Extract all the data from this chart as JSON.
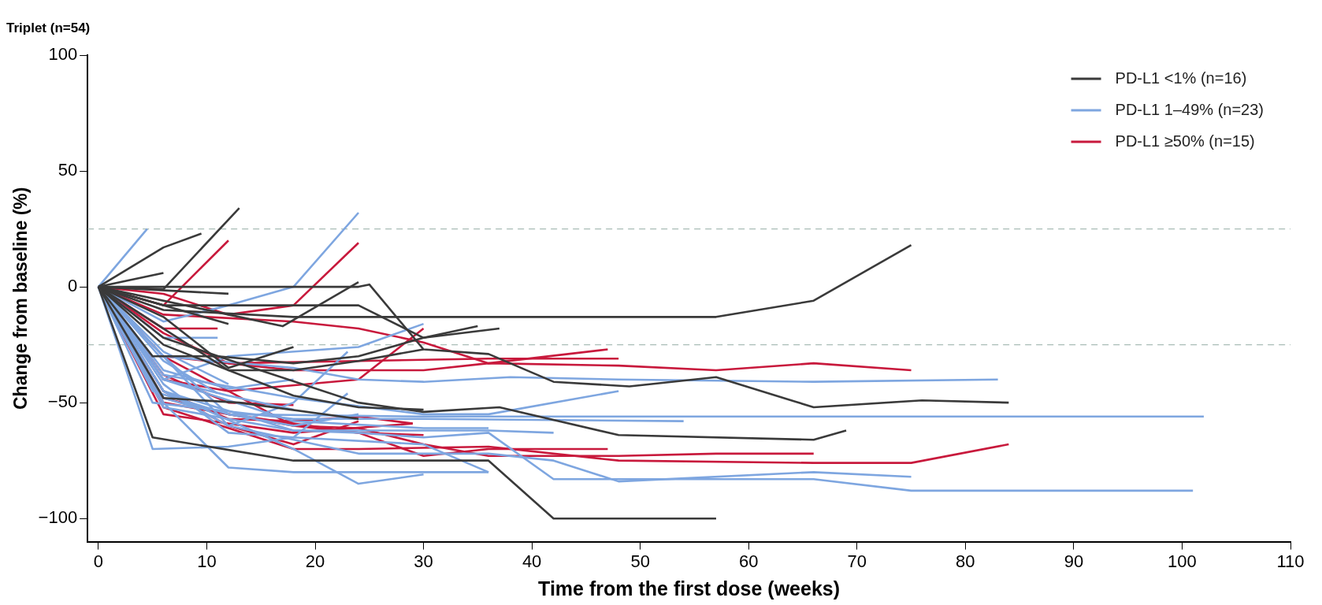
{
  "chart_data": {
    "type": "line",
    "title": "Triplet (n=54)",
    "xlabel": "Time from the first dose (weeks)",
    "ylabel": "Change from baseline (%)",
    "xlim": [
      -1,
      110
    ],
    "ylim": [
      -110,
      100
    ],
    "xticks": [
      0,
      10,
      20,
      30,
      40,
      50,
      60,
      70,
      80,
      90,
      100,
      110
    ],
    "yticks": [
      -100,
      -50,
      0,
      50,
      100
    ],
    "grid": false,
    "legend": "top right",
    "marker": "none",
    "line_style": "solid",
    "ref_lines": [
      {
        "axis": "y",
        "value": 25,
        "color": "#a9bdb6",
        "line_style": "dashed"
      },
      {
        "axis": "y",
        "value": -25,
        "color": "#a9bdb6",
        "line_style": "dashed"
      }
    ],
    "series": [
      {
        "name": "PD-L1 <1% (n=16)",
        "color": "#3a3a3a",
        "x": [
          0,
          6,
          9.5
        ],
        "values": [
          0,
          17,
          23
        ]
      },
      {
        "color": "#3a3a3a",
        "x": [
          0,
          6,
          13
        ],
        "values": [
          0,
          -1,
          34
        ]
      },
      {
        "color": "#3a3a3a",
        "x": [
          0,
          6
        ],
        "values": [
          0,
          6
        ]
      },
      {
        "color": "#3a3a3a",
        "x": [
          0,
          6,
          24,
          25,
          30,
          36,
          42,
          49,
          57,
          66,
          76,
          84
        ],
        "values": [
          0,
          0,
          0,
          1,
          -27,
          -29,
          -41,
          -43,
          -39,
          -52,
          -49,
          -50
        ]
      },
      {
        "color": "#3a3a3a",
        "x": [
          0,
          6,
          18,
          57,
          66,
          75
        ],
        "values": [
          0,
          -10,
          -13,
          -13,
          -6,
          18
        ]
      },
      {
        "color": "#3a3a3a",
        "x": [
          0,
          6,
          24,
          30,
          37
        ],
        "values": [
          0,
          -8,
          -8,
          -22,
          -18
        ]
      },
      {
        "color": "#3a3a3a",
        "x": [
          0,
          12
        ],
        "values": [
          0,
          -3
        ]
      },
      {
        "color": "#3a3a3a",
        "x": [
          0,
          12
        ],
        "values": [
          0,
          -16
        ]
      },
      {
        "color": "#3a3a3a",
        "x": [
          0,
          12,
          17,
          24
        ],
        "values": [
          0,
          -12,
          -17,
          2
        ]
      },
      {
        "color": "#3a3a3a",
        "x": [
          0,
          6,
          12,
          18
        ],
        "values": [
          0,
          -13,
          -35,
          -26
        ]
      },
      {
        "color": "#3a3a3a",
        "x": [
          0,
          5,
          11,
          18,
          24,
          30,
          35
        ],
        "values": [
          0,
          -30,
          -30,
          -33,
          -30,
          -22,
          -17
        ]
      },
      {
        "color": "#3a3a3a",
        "x": [
          0,
          6,
          13,
          24,
          30,
          37,
          48,
          66,
          69
        ],
        "values": [
          0,
          -22,
          -33,
          -50,
          -54,
          -52,
          -64,
          -66,
          -62
        ]
      },
      {
        "color": "#3a3a3a",
        "x": [
          0,
          5,
          18,
          36,
          42,
          48,
          57
        ],
        "values": [
          0,
          -65,
          -75,
          -75,
          -100,
          -100,
          -100
        ]
      },
      {
        "color": "#3a3a3a",
        "x": [
          0,
          6,
          13,
          24
        ],
        "values": [
          0,
          -48,
          -50,
          -57
        ]
      },
      {
        "color": "#3a3a3a",
        "x": [
          0,
          6,
          18,
          24,
          30
        ],
        "values": [
          0,
          -25,
          -47,
          -52,
          -53
        ]
      },
      {
        "color": "#3a3a3a",
        "x": [
          0,
          6,
          12,
          18,
          24,
          30
        ],
        "values": [
          0,
          -18,
          -36,
          -36,
          -32,
          -27
        ]
      },
      {
        "name": "PD-L1 1–49% (n=23)",
        "color": "#7ea6e0",
        "x": [
          0,
          4.5
        ],
        "values": [
          0,
          25
        ]
      },
      {
        "color": "#7ea6e0",
        "x": [
          0,
          6,
          12,
          18,
          24
        ],
        "values": [
          0,
          -15,
          -8,
          0,
          32
        ]
      },
      {
        "color": "#7ea6e0",
        "x": [
          0,
          6,
          11
        ],
        "values": [
          0,
          -22,
          -22
        ]
      },
      {
        "color": "#7ea6e0",
        "x": [
          0,
          6,
          12,
          24,
          30
        ],
        "values": [
          0,
          -40,
          -30,
          -26,
          -16
        ]
      },
      {
        "color": "#7ea6e0",
        "x": [
          0,
          6,
          18,
          30,
          36,
          48
        ],
        "values": [
          0,
          -38,
          -48,
          -55,
          -55,
          -45
        ]
      },
      {
        "color": "#7ea6e0",
        "x": [
          0,
          6,
          18,
          24,
          30,
          38,
          48,
          66,
          83
        ],
        "values": [
          0,
          -30,
          -35,
          -40,
          -41,
          -39,
          -40,
          -41,
          -40
        ]
      },
      {
        "color": "#7ea6e0",
        "x": [
          0,
          5,
          12,
          30,
          48,
          102
        ],
        "values": [
          0,
          -45,
          -55,
          -56,
          -56,
          -56
        ]
      },
      {
        "color": "#7ea6e0",
        "x": [
          0,
          5,
          18,
          30,
          54
        ],
        "values": [
          0,
          -50,
          -57,
          -57,
          -58
        ]
      },
      {
        "color": "#7ea6e0",
        "x": [
          0,
          6,
          18,
          36,
          42
        ],
        "values": [
          0,
          -45,
          -62,
          -62,
          -63
        ]
      },
      {
        "color": "#7ea6e0",
        "x": [
          0,
          6,
          18,
          24,
          30,
          36,
          42,
          66,
          75,
          101
        ],
        "values": [
          0,
          -52,
          -62,
          -63,
          -65,
          -63,
          -83,
          -83,
          -88,
          -88
        ]
      },
      {
        "color": "#7ea6e0",
        "x": [
          0,
          5,
          12,
          18,
          30,
          36
        ],
        "values": [
          0,
          -70,
          -69,
          -65,
          -68,
          -80
        ]
      },
      {
        "color": "#7ea6e0",
        "x": [
          0,
          6,
          12,
          18,
          24,
          30,
          36
        ],
        "values": [
          0,
          -50,
          -78,
          -80,
          -80,
          -80,
          -80
        ]
      },
      {
        "color": "#7ea6e0",
        "x": [
          0,
          6,
          18,
          24,
          30
        ],
        "values": [
          0,
          -45,
          -70,
          -85,
          -81
        ]
      },
      {
        "color": "#7ea6e0",
        "x": [
          0,
          12,
          24,
          36,
          42,
          48,
          66,
          75
        ],
        "values": [
          0,
          -60,
          -72,
          -72,
          -75,
          -84,
          -80,
          -82
        ]
      },
      {
        "color": "#7ea6e0",
        "x": [
          0,
          6,
          18,
          30,
          36
        ],
        "values": [
          0,
          -40,
          -58,
          -61,
          -61
        ]
      },
      {
        "color": "#7ea6e0",
        "x": [
          0,
          6,
          12,
          18,
          23
        ],
        "values": [
          0,
          -45,
          -60,
          -50,
          -28
        ]
      },
      {
        "color": "#7ea6e0",
        "x": [
          0,
          6,
          11
        ],
        "values": [
          0,
          -32,
          -46
        ]
      },
      {
        "color": "#7ea6e0",
        "x": [
          0,
          6,
          12,
          18
        ],
        "values": [
          0,
          -40,
          -47,
          -53
        ]
      },
      {
        "color": "#7ea6e0",
        "x": [
          0,
          6,
          12,
          18,
          23
        ],
        "values": [
          0,
          -42,
          -63,
          -65,
          -46
        ]
      },
      {
        "color": "#7ea6e0",
        "x": [
          0,
          6,
          9
        ],
        "values": [
          0,
          -48,
          -52
        ]
      },
      {
        "color": "#7ea6e0",
        "x": [
          0,
          6,
          12,
          18
        ],
        "values": [
          0,
          -36,
          -44,
          -40
        ]
      },
      {
        "color": "#7ea6e0",
        "x": [
          0,
          6,
          12,
          18,
          24
        ],
        "values": [
          0,
          -30,
          -55,
          -60,
          -55
        ]
      },
      {
        "color": "#7ea6e0",
        "x": [
          0,
          6,
          12
        ],
        "values": [
          0,
          -28,
          -42
        ]
      },
      {
        "name": "PD-L1 ≥50% (n=15)",
        "color": "#c8193c",
        "x": [
          0,
          6,
          12,
          18,
          24
        ],
        "values": [
          0,
          -3,
          -12,
          -8,
          19
        ]
      },
      {
        "color": "#c8193c",
        "x": [
          0,
          6,
          12
        ],
        "values": [
          0,
          -8,
          20
        ]
      },
      {
        "color": "#c8193c",
        "x": [
          0,
          6,
          11
        ],
        "values": [
          0,
          -18,
          -18
        ]
      },
      {
        "color": "#c8193c",
        "x": [
          0,
          6,
          18,
          24,
          30,
          36,
          47
        ],
        "values": [
          0,
          -12,
          -15,
          -18,
          -24,
          -33,
          -27
        ]
      },
      {
        "color": "#c8193c",
        "x": [
          0,
          6,
          12,
          24,
          36,
          48
        ],
        "values": [
          0,
          -20,
          -33,
          -32,
          -31,
          -31
        ]
      },
      {
        "color": "#c8193c",
        "x": [
          0,
          6,
          12,
          18,
          24,
          30,
          36,
          48,
          57,
          66,
          75
        ],
        "values": [
          0,
          -30,
          -33,
          -36,
          -36,
          -36,
          -33,
          -34,
          -36,
          -33,
          -36
        ]
      },
      {
        "color": "#c8193c",
        "x": [
          0,
          6,
          12,
          24,
          30
        ],
        "values": [
          0,
          -40,
          -45,
          -40,
          -18
        ]
      },
      {
        "color": "#c8193c",
        "x": [
          0,
          6,
          12,
          18,
          24,
          29
        ],
        "values": [
          0,
          -45,
          -57,
          -58,
          -56,
          -59
        ]
      },
      {
        "color": "#c8193c",
        "x": [
          0,
          6,
          12,
          24,
          30,
          36,
          47
        ],
        "values": [
          0,
          -48,
          -55,
          -63,
          -73,
          -70,
          -70
        ]
      },
      {
        "color": "#c8193c",
        "x": [
          0,
          6,
          18,
          24,
          30,
          36,
          48,
          57,
          66
        ],
        "values": [
          0,
          -50,
          -60,
          -61,
          -68,
          -73,
          -73,
          -72,
          -72
        ]
      },
      {
        "color": "#c8193c",
        "x": [
          0,
          6,
          18,
          24,
          36,
          48,
          66,
          75,
          84
        ],
        "values": [
          0,
          -52,
          -70,
          -70,
          -69,
          -75,
          -76,
          -76,
          -68
        ]
      },
      {
        "color": "#c8193c",
        "x": [
          0,
          6,
          18,
          29
        ],
        "values": [
          0,
          -55,
          -63,
          -59
        ]
      },
      {
        "color": "#c8193c",
        "x": [
          0,
          6,
          12,
          18
        ],
        "values": [
          0,
          -38,
          -50,
          -51
        ]
      },
      {
        "color": "#c8193c",
        "x": [
          0,
          6,
          12,
          18,
          24
        ],
        "values": [
          0,
          -45,
          -60,
          -68,
          -58
        ]
      },
      {
        "color": "#c8193c",
        "x": [
          0,
          6,
          12,
          18,
          24,
          30
        ],
        "values": [
          0,
          -30,
          -45,
          -60,
          -63,
          -64
        ]
      }
    ]
  }
}
